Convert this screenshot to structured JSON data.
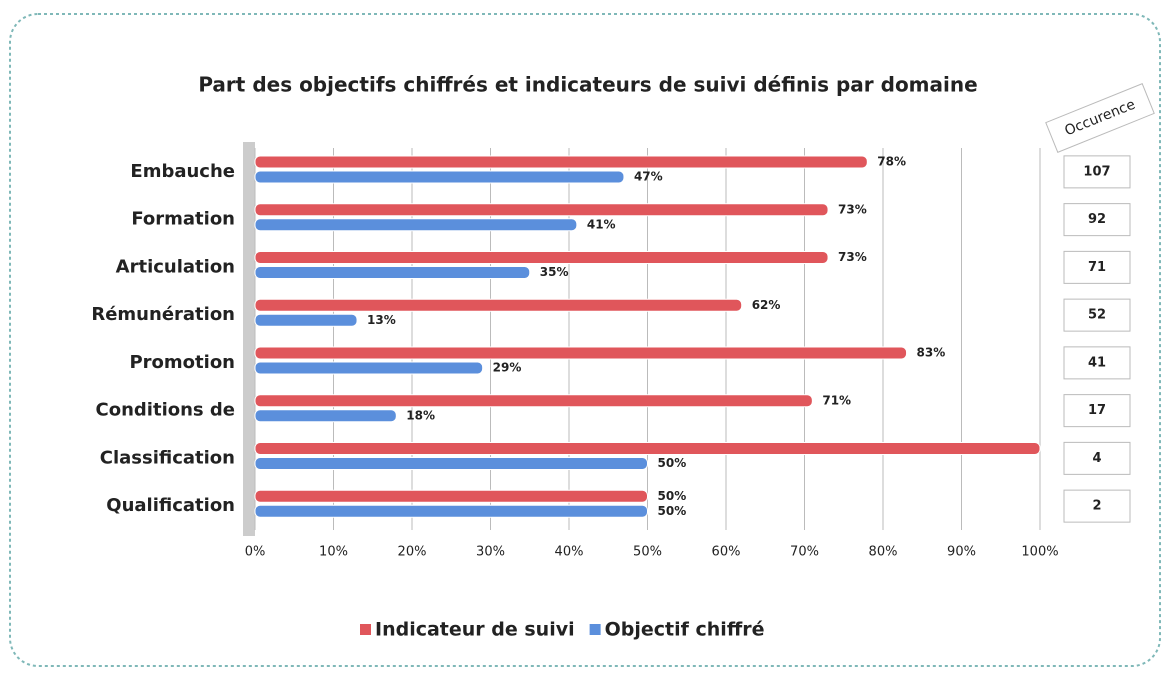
{
  "chart_data": {
    "type": "bar",
    "orientation": "horizontal",
    "title": "Part des objectifs chiffrés et indicateurs de suivi définis par domaine",
    "categories": [
      "Embauche",
      "Formation",
      "Articulation",
      "Rémunération",
      "Promotion",
      "Conditions de",
      "Classification",
      "Qualification"
    ],
    "series": [
      {
        "name": "Indicateur de suivi",
        "color": "#e0565b",
        "values": [
          78,
          73,
          73,
          62,
          83,
          71,
          100,
          50
        ],
        "value_labels": [
          "78%",
          "73%",
          "73%",
          "62%",
          "83%",
          "71%",
          null,
          "50%"
        ]
      },
      {
        "name": "Objectif chiffré",
        "color": "#5b8fdc",
        "values": [
          47,
          41,
          35,
          13,
          29,
          18,
          50,
          50
        ],
        "value_labels": [
          "47%",
          "41%",
          "35%",
          "13%",
          "29%",
          "18%",
          "50%",
          "50%"
        ]
      }
    ],
    "xlim": [
      0,
      100
    ],
    "xticks": [
      {
        "value": 0,
        "label": "0%"
      },
      {
        "value": 10,
        "label": "10%"
      },
      {
        "value": 20,
        "label": "20%"
      },
      {
        "value": 30,
        "label": "30%"
      },
      {
        "value": 40,
        "label": "40%"
      },
      {
        "value": 50,
        "label": "50%"
      },
      {
        "value": 60,
        "label": "60%"
      },
      {
        "value": 70,
        "label": "70%"
      },
      {
        "value": 80,
        "label": "80%"
      },
      {
        "value": 90,
        "label": "90%"
      },
      {
        "value": 100,
        "label": "100%"
      }
    ],
    "grid": true,
    "legend": "bottom",
    "occurrence": {
      "title": "Occurence",
      "values": [
        107,
        92,
        71,
        52,
        41,
        17,
        4,
        2
      ]
    }
  }
}
